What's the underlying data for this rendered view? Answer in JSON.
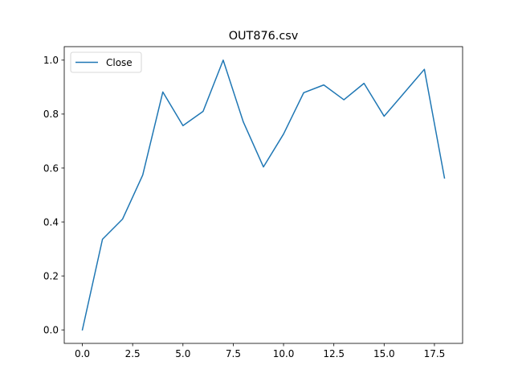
{
  "chart_data": {
    "type": "line",
    "title": "OUT876.csv",
    "xlabel": "",
    "ylabel": "",
    "xlim": [
      -0.9,
      18.9
    ],
    "ylim": [
      -0.05,
      1.05
    ],
    "xticks": [
      0.0,
      2.5,
      5.0,
      7.5,
      10.0,
      12.5,
      15.0,
      17.5
    ],
    "xtick_labels": [
      "0.0",
      "2.5",
      "5.0",
      "7.5",
      "10.0",
      "12.5",
      "15.0",
      "17.5"
    ],
    "yticks": [
      0.0,
      0.2,
      0.4,
      0.6,
      0.8,
      1.0
    ],
    "ytick_labels": [
      "0.0",
      "0.2",
      "0.4",
      "0.6",
      "0.8",
      "1.0"
    ],
    "grid": false,
    "legend": "upper-left",
    "series": [
      {
        "name": "Close",
        "color": "#1f77b4",
        "x": [
          0,
          1,
          2,
          3,
          4,
          5,
          6,
          7,
          8,
          9,
          10,
          11,
          12,
          13,
          14,
          15,
          16,
          17,
          18
        ],
        "values": [
          0.0,
          0.336,
          0.411,
          0.574,
          0.882,
          0.757,
          0.81,
          1.0,
          0.771,
          0.604,
          0.726,
          0.879,
          0.908,
          0.853,
          0.914,
          0.792,
          0.879,
          0.966,
          0.563
        ]
      }
    ]
  }
}
